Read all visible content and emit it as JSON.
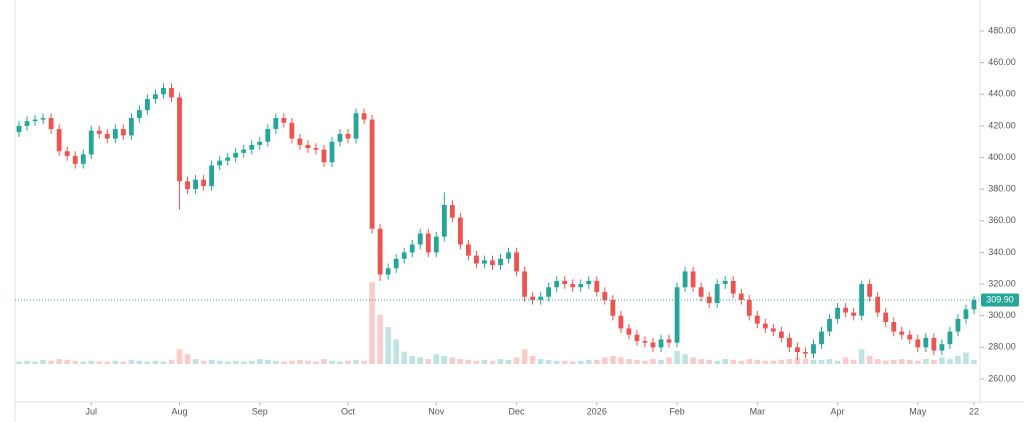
{
  "chart_data": {
    "type": "candlestick",
    "up_color": "#26a69a",
    "down_color": "#ef5350",
    "grid": false,
    "categories": [
      null,
      null,
      null,
      null,
      null,
      null,
      null,
      null,
      null,
      "Jul",
      null,
      null,
      null,
      null,
      null,
      null,
      null,
      null,
      null,
      null,
      "Aug",
      null,
      null,
      null,
      null,
      null,
      null,
      null,
      null,
      null,
      "Sep",
      null,
      null,
      null,
      null,
      null,
      null,
      null,
      null,
      null,
      null,
      "Oct",
      null,
      null,
      null,
      null,
      null,
      null,
      null,
      null,
      null,
      null,
      "Nov",
      null,
      null,
      null,
      null,
      null,
      null,
      null,
      null,
      null,
      "Dec",
      null,
      null,
      null,
      null,
      null,
      null,
      null,
      null,
      null,
      "2026",
      null,
      null,
      null,
      null,
      null,
      null,
      null,
      null,
      null,
      "Feb",
      null,
      null,
      null,
      null,
      null,
      null,
      null,
      null,
      null,
      "Mar",
      null,
      null,
      null,
      null,
      null,
      null,
      null,
      null,
      null,
      "Apr",
      null,
      null,
      null,
      null,
      null,
      null,
      null,
      null,
      null,
      "May",
      null,
      null,
      null,
      null,
      null,
      null,
      "22"
    ],
    "open": [
      416,
      420,
      423,
      424,
      425,
      418,
      404,
      401,
      396,
      402,
      417,
      415,
      412,
      418,
      414,
      425,
      430,
      437,
      440,
      444,
      438,
      385,
      380,
      386,
      382,
      395,
      398,
      400,
      403,
      405,
      408,
      410,
      418,
      425,
      422,
      412,
      408,
      406,
      405,
      397,
      410,
      415,
      412,
      428,
      424,
      355,
      326,
      330,
      336,
      340,
      345,
      352,
      340,
      350,
      370,
      362,
      345,
      338,
      333,
      335,
      332,
      336,
      340,
      328,
      312,
      310,
      312,
      318,
      322,
      320,
      318,
      320,
      322,
      315,
      310,
      300,
      292,
      288,
      284,
      283,
      280,
      285,
      283,
      318,
      328,
      318,
      312,
      308,
      320,
      322,
      314,
      310,
      300,
      295,
      292,
      290,
      286,
      280,
      277,
      276,
      282,
      290,
      298,
      305,
      302,
      300,
      320,
      312,
      302,
      296,
      290,
      288,
      285,
      280,
      286,
      278,
      282,
      290,
      298,
      304
    ],
    "high": [
      423,
      426,
      427,
      428,
      428,
      421,
      407,
      404,
      405,
      420,
      420,
      418,
      421,
      421,
      428,
      433,
      440,
      443,
      447,
      447,
      441,
      388,
      389,
      389,
      398,
      401,
      403,
      406,
      408,
      411,
      413,
      421,
      428,
      428,
      425,
      415,
      411,
      409,
      408,
      413,
      418,
      418,
      431,
      431,
      427,
      358,
      333,
      339,
      343,
      348,
      355,
      355,
      353,
      378,
      373,
      365,
      348,
      341,
      338,
      338,
      339,
      343,
      343,
      331,
      315,
      315,
      321,
      325,
      325,
      323,
      323,
      325,
      325,
      318,
      313,
      303,
      295,
      291,
      287,
      286,
      288,
      288,
      321,
      331,
      331,
      321,
      315,
      323,
      325,
      325,
      317,
      313,
      303,
      298,
      295,
      293,
      289,
      283,
      280,
      285,
      293,
      301,
      308,
      308,
      305,
      322,
      323,
      315,
      305,
      299,
      293,
      291,
      288,
      289,
      289,
      285,
      293,
      301,
      307,
      312
    ],
    "low": [
      413,
      417,
      420,
      421,
      415,
      401,
      398,
      393,
      393,
      399,
      412,
      409,
      409,
      411,
      411,
      422,
      427,
      434,
      437,
      435,
      367,
      377,
      377,
      379,
      379,
      392,
      395,
      397,
      400,
      402,
      405,
      407,
      415,
      419,
      409,
      405,
      403,
      402,
      394,
      394,
      407,
      409,
      409,
      421,
      352,
      322,
      323,
      327,
      333,
      337,
      342,
      337,
      337,
      347,
      359,
      342,
      335,
      330,
      330,
      329,
      329,
      333,
      325,
      309,
      307,
      307,
      309,
      315,
      317,
      315,
      315,
      317,
      312,
      307,
      297,
      289,
      285,
      281,
      280,
      277,
      277,
      280,
      280,
      315,
      315,
      309,
      305,
      305,
      317,
      311,
      307,
      297,
      292,
      289,
      287,
      283,
      277,
      272,
      273,
      273,
      279,
      287,
      295,
      299,
      297,
      297,
      309,
      299,
      293,
      287,
      285,
      282,
      277,
      277,
      275,
      275,
      279,
      287,
      295,
      301
    ],
    "close": [
      420,
      423,
      424,
      425,
      418,
      404,
      401,
      396,
      402,
      417,
      415,
      412,
      418,
      414,
      425,
      430,
      437,
      440,
      444,
      438,
      385,
      380,
      386,
      382,
      395,
      398,
      400,
      403,
      405,
      408,
      410,
      418,
      425,
      422,
      412,
      408,
      406,
      405,
      397,
      410,
      415,
      412,
      428,
      424,
      355,
      326,
      330,
      336,
      340,
      345,
      352,
      340,
      350,
      370,
      362,
      345,
      338,
      333,
      335,
      332,
      336,
      340,
      328,
      312,
      310,
      312,
      318,
      322,
      320,
      318,
      320,
      322,
      315,
      310,
      300,
      292,
      288,
      284,
      283,
      280,
      285,
      283,
      318,
      328,
      318,
      312,
      308,
      320,
      322,
      314,
      310,
      300,
      295,
      292,
      290,
      286,
      280,
      277,
      276,
      282,
      290,
      298,
      305,
      302,
      300,
      320,
      312,
      302,
      296,
      290,
      288,
      285,
      280,
      286,
      278,
      282,
      290,
      298,
      304,
      309.9
    ],
    "volume": [
      3,
      4,
      3,
      5,
      4,
      6,
      5,
      4,
      3,
      4,
      3,
      3,
      4,
      3,
      5,
      4,
      3,
      4,
      3,
      5,
      18,
      12,
      6,
      4,
      5,
      4,
      3,
      4,
      3,
      4,
      6,
      5,
      4,
      3,
      4,
      5,
      4,
      3,
      6,
      4,
      3,
      4,
      5,
      4,
      100,
      60,
      45,
      30,
      15,
      10,
      8,
      6,
      12,
      10,
      8,
      6,
      5,
      4,
      5,
      4,
      6,
      5,
      8,
      18,
      10,
      6,
      5,
      4,
      4,
      3,
      4,
      5,
      5,
      8,
      10,
      8,
      6,
      5,
      4,
      6,
      5,
      8,
      16,
      12,
      8,
      6,
      5,
      4,
      6,
      5,
      4,
      6,
      5,
      4,
      4,
      5,
      6,
      8,
      6,
      5,
      5,
      6,
      4,
      8,
      5,
      18,
      10,
      6,
      4,
      5,
      6,
      5,
      4,
      6,
      5,
      8,
      6,
      10,
      14,
      5
    ],
    "ylim": [
      250,
      490
    ],
    "yticks": [
      {
        "value": 260,
        "label": "260.00"
      },
      {
        "value": 280,
        "label": "280.00"
      },
      {
        "value": 300,
        "label": "300.00"
      },
      {
        "value": 320,
        "label": "320.00"
      },
      {
        "value": 340,
        "label": "340.00"
      },
      {
        "value": 360,
        "label": "360.00"
      },
      {
        "value": 380,
        "label": "380.00"
      },
      {
        "value": 400,
        "label": "400.00"
      },
      {
        "value": 420,
        "label": "420.00"
      },
      {
        "value": 440,
        "label": "440.00"
      },
      {
        "value": 460,
        "label": "460.00"
      },
      {
        "value": 480,
        "label": "480.00"
      }
    ],
    "last_price": {
      "value": 309.9,
      "label": "309.90"
    }
  }
}
